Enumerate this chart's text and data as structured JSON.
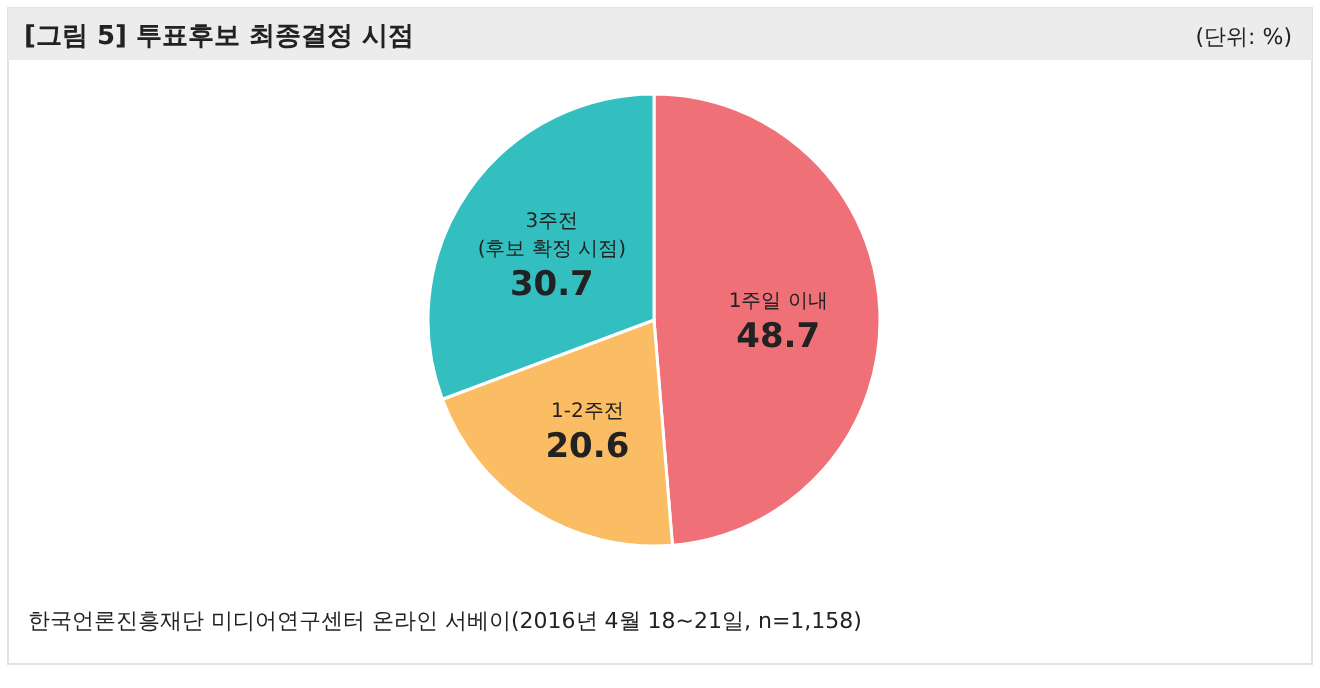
{
  "chart_data": {
    "type": "pie",
    "title": "[그림 5] 투표후보 최종결정 시점",
    "subtitle": "(단위: %)",
    "categories": [
      "1주일 이내",
      "1-2주전",
      "3주전 (후보 확정 시점)"
    ],
    "values": [
      48.7,
      20.6,
      30.7
    ],
    "colors": [
      "#f07077",
      "#fbbd63",
      "#33bfbf"
    ],
    "data_labels": true,
    "annotations": [
      "한국언론진흥재단 미디어연구센터 온라인 서베이(2016년 4월 18~21일, n=1,158)"
    ]
  }
}
